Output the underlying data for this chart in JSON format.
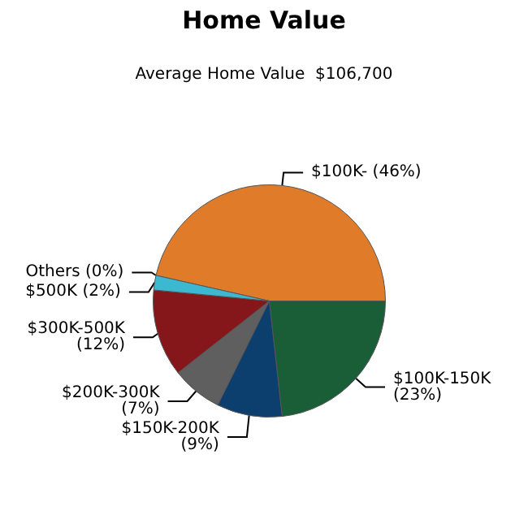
{
  "chart_data": {
    "type": "pie",
    "title": "Home Value",
    "subtitle": "Average Home Value  $106,700",
    "categories": [
      "$100K-",
      "$100K-150K",
      "$150K-200K",
      "$200K-300K",
      "$300K-500K",
      "$500K",
      "Others"
    ],
    "values": [
      46,
      23,
      9,
      7,
      12,
      2,
      0
    ],
    "colors": [
      "#e07b2a",
      "#1a5e38",
      "#0d3f6e",
      "#5f5f5f",
      "#85161a",
      "#3cb8d0",
      "#8888bb"
    ],
    "value_labels": [
      "(46%)",
      "(23%)",
      "(9%)",
      "(7%)",
      "(12%)",
      "(2%)",
      "(0%)"
    ]
  }
}
